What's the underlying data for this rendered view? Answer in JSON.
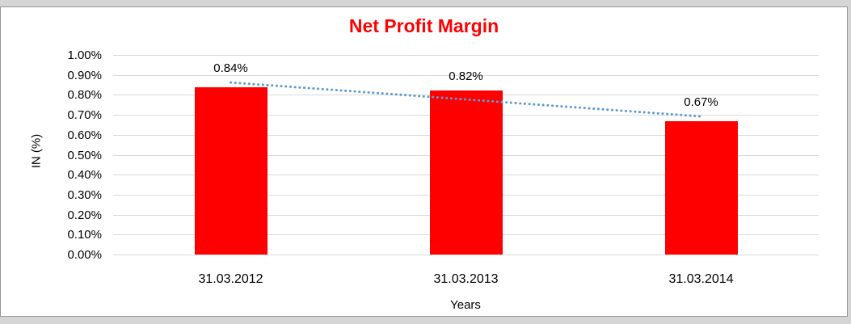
{
  "chart_data": {
    "type": "bar",
    "title": "Net Profit Margin",
    "xlabel": "Years",
    "ylabel": "IN (%)",
    "categories": [
      "31.03.2012",
      "31.03.2013",
      "31.03.2014"
    ],
    "values": [
      0.84,
      0.82,
      0.67
    ],
    "data_labels": [
      "0.84%",
      "0.82%",
      "0.67%"
    ],
    "ylim": [
      0,
      1.0
    ],
    "ytick_step": 0.1,
    "ytick_labels": [
      "1.00%",
      "0.90%",
      "0.80%",
      "0.70%",
      "0.60%",
      "0.50%",
      "0.40%",
      "0.30%",
      "0.20%",
      "0.10%",
      "0.00%"
    ],
    "grid": true,
    "legend": false,
    "trendline": {
      "style": "dotted",
      "start_value": 0.862,
      "end_value": 0.692
    },
    "colors": {
      "bar": "#FF0000",
      "title": "#FF0000",
      "gridline": "#D9D9D9",
      "trendline": "#5B9BD5",
      "text": "#000000",
      "frame_background": "#D5D5D5",
      "plot_background": "#FFFFFF"
    }
  }
}
